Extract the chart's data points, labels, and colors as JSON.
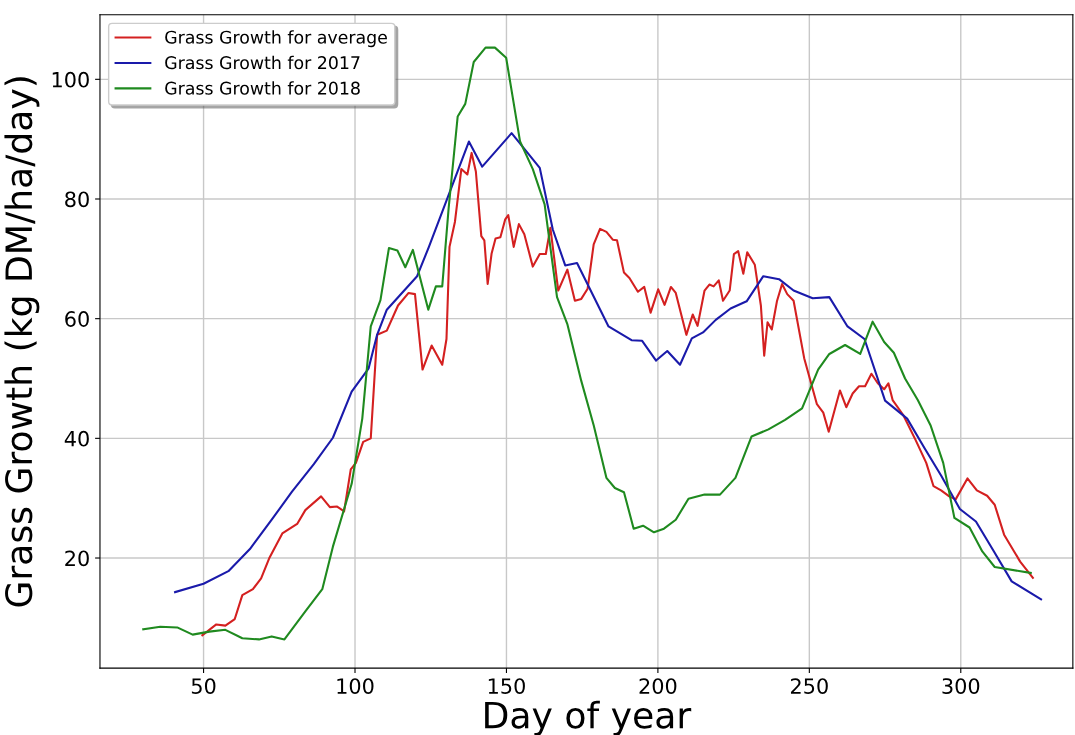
{
  "chart_data": {
    "type": "line",
    "xlabel": "Day of year",
    "ylabel": "Grass Growth (kg DM/ha/day)",
    "xlim": [
      15.8,
      337
    ],
    "ylim": [
      1.6,
      110.8
    ],
    "xticks": [
      50,
      100,
      150,
      200,
      250,
      300
    ],
    "yticks": [
      20,
      40,
      60,
      80,
      100
    ],
    "grid": true,
    "legend": "top left",
    "line_style": "solid",
    "marker": "none",
    "series": [
      {
        "name": "Grass Growth for average",
        "color": "#d42020",
        "x": [
          49.6,
          54.2,
          57.2,
          60.3,
          62.8,
          66.3,
          69.0,
          71.8,
          76.0,
          80.9,
          83.6,
          88.8,
          91.7,
          94.1,
          96.4,
          98.6,
          100.3,
          102.7,
          105.2,
          107.3,
          110.5,
          114.2,
          117.7,
          119.8,
          122.3,
          125.3,
          128.8,
          130.2,
          131.2,
          133.0,
          135.1,
          137.1,
          138.5,
          139.9,
          141.7,
          142.7,
          143.8,
          145.1,
          146.4,
          148.0,
          149.6,
          150.6,
          152.4,
          154.1,
          155.9,
          158.7,
          161.0,
          163.0,
          164.5,
          167.1,
          170.1,
          172.6,
          174.7,
          176.8,
          178.8,
          180.9,
          183.0,
          185.1,
          186.5,
          188.8,
          190.6,
          193.4,
          195.5,
          197.6,
          200.1,
          202.2,
          204.3,
          205.9,
          209.4,
          211.5,
          213.1,
          215.4,
          217.0,
          218.4,
          220.1,
          221.5,
          223.7,
          225.1,
          226.5,
          228.2,
          229.5,
          232.0,
          234.0,
          235.1,
          236.2,
          237.6,
          239.3,
          241.0,
          242.7,
          244.8,
          248.3,
          252.5,
          254.6,
          256.4,
          260.1,
          262.2,
          264.3,
          266.4,
          268.4,
          270.5,
          272.6,
          274.7,
          276.1,
          277.5,
          281.0,
          285.1,
          288.6,
          291.0,
          293.5,
          296.2,
          298.3,
          302.2,
          305.3,
          308.7,
          311.2,
          314.3,
          319.6,
          323.8
        ],
        "values": [
          7.1,
          8.9,
          8.7,
          9.8,
          13.8,
          14.8,
          16.6,
          20.1,
          24.1,
          25.7,
          28.0,
          30.3,
          28.5,
          28.6,
          27.8,
          34.8,
          35.9,
          39.4,
          40.0,
          57.3,
          58.0,
          62.2,
          64.3,
          64.1,
          51.5,
          55.5,
          52.3,
          56.6,
          72.0,
          76.2,
          85.0,
          84.1,
          87.7,
          84.6,
          73.8,
          73.1,
          65.8,
          70.9,
          73.4,
          73.6,
          76.6,
          77.3,
          72.0,
          75.8,
          74.1,
          68.7,
          70.8,
          70.8,
          75.2,
          64.7,
          68.2,
          63.0,
          63.3,
          65.0,
          72.4,
          75.0,
          74.5,
          73.2,
          73.1,
          67.7,
          66.8,
          64.5,
          65.3,
          61.0,
          64.9,
          62.3,
          65.3,
          64.3,
          57.3,
          60.7,
          58.8,
          64.7,
          65.7,
          65.4,
          66.4,
          63.0,
          64.7,
          70.8,
          71.3,
          67.5,
          71.1,
          69.0,
          62.2,
          53.8,
          59.4,
          58.2,
          62.9,
          65.8,
          64.1,
          63.0,
          53.4,
          45.7,
          44.3,
          41.1,
          48.0,
          45.2,
          47.5,
          48.7,
          48.7,
          50.8,
          49.2,
          48.2,
          49.2,
          46.4,
          43.9,
          39.7,
          35.9,
          32.0,
          31.3,
          30.3,
          29.8,
          33.3,
          31.3,
          30.4,
          28.9,
          23.9,
          19.4,
          16.7
        ]
      },
      {
        "name": "Grass Growth for 2017",
        "color": "#1a1aaa",
        "x": [
          40.6,
          50.0,
          58.2,
          65.3,
          72.5,
          79.2,
          86.4,
          92.7,
          98.9,
          104.5,
          107.3,
          110.5,
          120.5,
          124.4,
          137.6,
          142.0,
          151.7,
          161.0,
          165.3,
          169.4,
          173.3,
          183.7,
          191.3,
          194.8,
          199.4,
          203.1,
          207.3,
          211.2,
          214.9,
          219.1,
          224.0,
          229.3,
          234.8,
          240.0,
          244.8,
          251.1,
          256.6,
          262.6,
          268.2,
          275.0,
          282.3,
          288.0,
          293.5,
          299.7,
          305.0,
          310.8,
          316.8,
          326.5
        ],
        "values": [
          14.3,
          15.7,
          17.8,
          21.5,
          26.4,
          31.1,
          35.7,
          40.1,
          47.8,
          51.7,
          57.3,
          61.5,
          67.1,
          72.0,
          89.6,
          85.4,
          91.0,
          85.2,
          74.9,
          68.9,
          69.3,
          58.7,
          56.4,
          56.3,
          53.0,
          54.6,
          52.3,
          56.7,
          57.7,
          59.8,
          61.7,
          62.9,
          67.1,
          66.6,
          64.7,
          63.4,
          63.6,
          58.7,
          56.6,
          46.3,
          43.3,
          38.4,
          33.8,
          28.2,
          26.1,
          21.2,
          16.1,
          13.1
        ]
      },
      {
        "name": "Grass Growth for 2018",
        "color": "#1f8a1f",
        "x": [
          30.1,
          35.7,
          41.3,
          46.4,
          51.9,
          57.2,
          62.8,
          68.3,
          72.5,
          76.7,
          83.6,
          89.2,
          92.7,
          98.9,
          102.4,
          105.2,
          108.4,
          111.2,
          114.0,
          116.6,
          119.1,
          124.2,
          126.7,
          128.8,
          130.9,
          133.9,
          136.4,
          139.2,
          143.1,
          146.2,
          149.9,
          154.5,
          158.7,
          162.6,
          166.7,
          170.1,
          174.7,
          178.8,
          183.0,
          185.8,
          188.8,
          192.0,
          195.1,
          198.7,
          202.0,
          205.9,
          210.1,
          215.4,
          220.5,
          225.6,
          230.9,
          236.5,
          242.0,
          247.6,
          252.9,
          256.6,
          261.8,
          266.8,
          270.9,
          274.7,
          277.9,
          281.6,
          285.8,
          290.0,
          294.2,
          297.9,
          302.9,
          307.1,
          311.2,
          323.1
        ],
        "values": [
          8.1,
          8.5,
          8.4,
          7.2,
          7.7,
          8.0,
          6.6,
          6.4,
          6.9,
          6.4,
          11.1,
          14.8,
          21.9,
          32.4,
          43.3,
          58.7,
          63.1,
          71.8,
          71.4,
          68.6,
          71.5,
          61.5,
          65.4,
          65.4,
          78.4,
          93.8,
          95.9,
          102.9,
          105.3,
          105.3,
          103.6,
          89.6,
          85.0,
          79.1,
          63.6,
          59.1,
          49.6,
          42.2,
          33.4,
          31.7,
          31.0,
          24.9,
          25.4,
          24.3,
          24.9,
          26.4,
          29.9,
          30.6,
          30.6,
          33.4,
          40.3,
          41.5,
          43.1,
          45.0,
          51.5,
          54.1,
          55.6,
          54.1,
          59.5,
          56.1,
          54.3,
          50.0,
          46.4,
          42.2,
          35.9,
          26.7,
          25.1,
          21.1,
          18.5,
          17.5
        ]
      }
    ]
  }
}
